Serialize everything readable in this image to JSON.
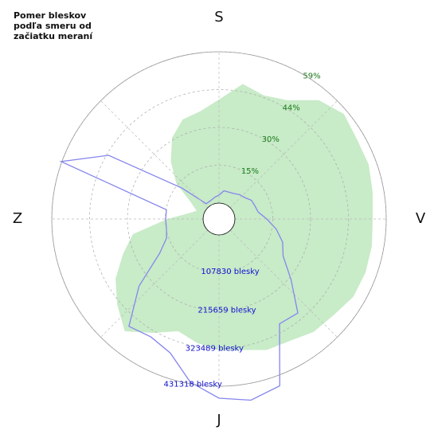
{
  "chart_data": {
    "type": "polar",
    "title": "Pomer bleskov podľa smeru od začiatku meraní",
    "x": [
      0,
      10,
      20,
      30,
      40,
      50,
      60,
      70,
      80,
      90,
      100,
      110,
      120,
      130,
      140,
      150,
      160,
      170,
      180,
      190,
      200,
      210,
      220,
      230,
      240,
      250,
      260,
      270,
      280,
      290,
      300,
      310,
      320,
      330,
      340,
      350
    ],
    "xlim": [
      0,
      360
    ],
    "xticks": [
      {
        "value": 0,
        "label": "S"
      },
      {
        "value": 90,
        "label": "V"
      },
      {
        "value": 180,
        "label": "J"
      },
      {
        "value": 270,
        "label": "Z"
      }
    ],
    "ylim": [
      0,
      59.2
    ],
    "yticks": [
      {
        "value": 14.8,
        "label": "15%"
      },
      {
        "value": 29.6,
        "label": "30%"
      },
      {
        "value": 44.4,
        "label": "44%"
      },
      {
        "value": 59.2,
        "label": "59%"
      }
    ],
    "y2lim": [
      0,
      431318
    ],
    "y2ticks": [
      {
        "value": 107830,
        "label": "107830 blesky"
      },
      {
        "value": 215659,
        "label": "215659 blesky"
      },
      {
        "value": 323489,
        "label": "323489 blesky"
      },
      {
        "value": 431318,
        "label": "431318 blesky"
      }
    ],
    "ytick_color": "#1a7a1a",
    "y2tick_color": "#1010d0",
    "grid": true,
    "series": [
      {
        "color": "#c8ebc8",
        "fill": true,
        "values": [
          40.5,
          47.4,
          45.2,
          47.4,
          54.5,
          57.6,
          56.1,
          56.1,
          54.8,
          53.9,
          54.5,
          54.8,
          54.5,
          52.3,
          51.4,
          48.9,
          48.3,
          45.8,
          45.2,
          43.0,
          40.5,
          45.2,
          51.1,
          45.8,
          40.5,
          33.7,
          28.0,
          14.0,
          6.2,
          3.1,
          6.2,
          15.6,
          23.1,
          30.5,
          35.2,
          36.5
        ]
      },
      {
        "color": "#8585ee",
        "axis": "y2",
        "values": [
          22700,
          36300,
          36300,
          38600,
          45400,
          49900,
          61300,
          63600,
          68100,
          90800,
          120300,
          147600,
          165700,
          222500,
          304200,
          299600,
          460800,
          479000,
          465400,
          426800,
          360900,
          342800,
          354100,
          252000,
          149800,
          113500,
          106700,
          106700,
          106700,
          433600,
          317800,
          90800,
          11400,
          11400,
          13600,
          18200
        ]
      }
    ]
  }
}
